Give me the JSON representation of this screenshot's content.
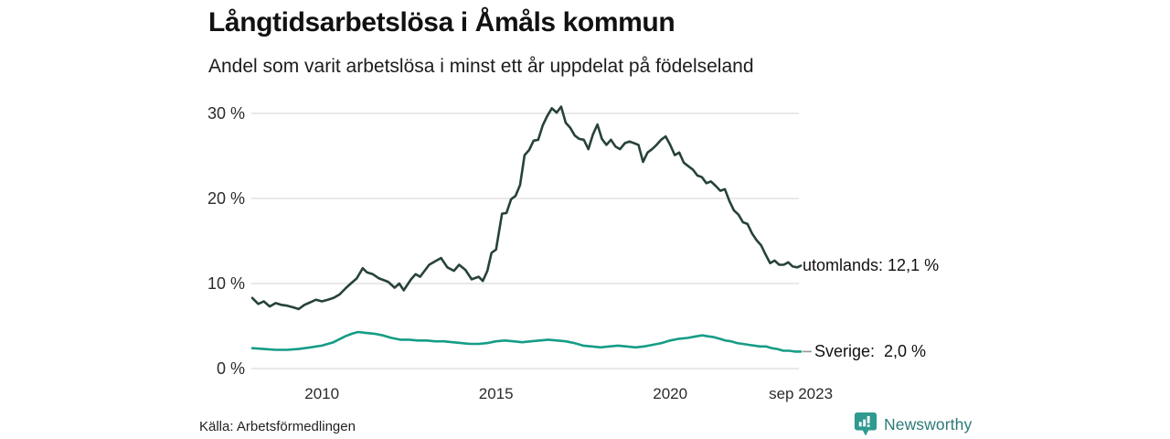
{
  "header": {
    "title": "Långtidsarbetslösa i Åmåls kommun",
    "subtitle": "Andel som varit arbetslösa i minst ett år uppdelat på födelseland"
  },
  "footer": {
    "source": "Källa: Arbetsförmedlingen",
    "brand": "Newsworthy"
  },
  "colors": {
    "series_utomlands": "#27423a",
    "series_sverige": "#169c87",
    "gridline": "#e2e2e2",
    "leader_dash": "#999999",
    "brand_teal": "#2f9a8f",
    "brand_text": "#2c7a77"
  },
  "chart_data": {
    "type": "line",
    "title": "Långtidsarbetslösa i Åmåls kommun",
    "subtitle": "Andel som varit arbetslösa i minst ett år uppdelat på födelseland",
    "grid": true,
    "legend_position": "end-of-line-labels",
    "x_axis": {
      "range": [
        2008.0,
        2023.75
      ],
      "ticks": [
        {
          "x": 2010,
          "label": "2010"
        },
        {
          "x": 2015,
          "label": "2015"
        },
        {
          "x": 2020,
          "label": "2020"
        },
        {
          "x": 2023.75,
          "label": "sep 2023"
        }
      ]
    },
    "y_axis": {
      "range": [
        0,
        31
      ],
      "unit": "%",
      "ticks": [
        {
          "v": 30,
          "label": "30 %"
        },
        {
          "v": 20,
          "label": "20 %"
        },
        {
          "v": 10,
          "label": "10 %"
        },
        {
          "v": 0,
          "label": "0 %"
        }
      ]
    },
    "series": [
      {
        "name": "utomlands",
        "end_label": "utomlands: 12,1 %",
        "end_value": 12.1,
        "color": "#27423a",
        "leader_dash": false,
        "points": [
          [
            2008.0,
            8.3
          ],
          [
            2008.17,
            7.6
          ],
          [
            2008.33,
            7.9
          ],
          [
            2008.5,
            7.3
          ],
          [
            2008.67,
            7.7
          ],
          [
            2008.83,
            7.5
          ],
          [
            2009.0,
            7.4
          ],
          [
            2009.17,
            7.2
          ],
          [
            2009.33,
            7.0
          ],
          [
            2009.5,
            7.5
          ],
          [
            2009.67,
            7.8
          ],
          [
            2009.83,
            8.1
          ],
          [
            2010.0,
            7.9
          ],
          [
            2010.17,
            8.1
          ],
          [
            2010.33,
            8.3
          ],
          [
            2010.5,
            8.7
          ],
          [
            2010.67,
            9.4
          ],
          [
            2010.83,
            10.0
          ],
          [
            2011.0,
            10.6
          ],
          [
            2011.17,
            11.8
          ],
          [
            2011.3,
            11.3
          ],
          [
            2011.46,
            11.1
          ],
          [
            2011.64,
            10.6
          ],
          [
            2011.9,
            10.2
          ],
          [
            2012.09,
            9.5
          ],
          [
            2012.22,
            10.0
          ],
          [
            2012.35,
            9.2
          ],
          [
            2012.56,
            10.5
          ],
          [
            2012.69,
            11.1
          ],
          [
            2012.82,
            10.8
          ],
          [
            2013.08,
            12.2
          ],
          [
            2013.25,
            12.6
          ],
          [
            2013.42,
            13.0
          ],
          [
            2013.6,
            11.9
          ],
          [
            2013.79,
            11.5
          ],
          [
            2013.94,
            12.2
          ],
          [
            2014.12,
            11.6
          ],
          [
            2014.3,
            10.5
          ],
          [
            2014.5,
            10.8
          ],
          [
            2014.62,
            10.3
          ],
          [
            2014.75,
            11.5
          ],
          [
            2014.87,
            13.6
          ],
          [
            2015.0,
            14.0
          ],
          [
            2015.17,
            18.2
          ],
          [
            2015.3,
            18.3
          ],
          [
            2015.43,
            19.9
          ],
          [
            2015.56,
            20.3
          ],
          [
            2015.69,
            21.6
          ],
          [
            2015.82,
            25.1
          ],
          [
            2015.95,
            25.7
          ],
          [
            2016.08,
            26.8
          ],
          [
            2016.21,
            26.9
          ],
          [
            2016.34,
            28.6
          ],
          [
            2016.47,
            29.7
          ],
          [
            2016.6,
            30.6
          ],
          [
            2016.74,
            30.1
          ],
          [
            2016.87,
            30.8
          ],
          [
            2017.0,
            28.9
          ],
          [
            2017.13,
            28.3
          ],
          [
            2017.26,
            27.4
          ],
          [
            2017.39,
            27.0
          ],
          [
            2017.52,
            26.9
          ],
          [
            2017.65,
            25.8
          ],
          [
            2017.78,
            27.5
          ],
          [
            2017.91,
            28.7
          ],
          [
            2018.04,
            27.0
          ],
          [
            2018.17,
            26.3
          ],
          [
            2018.3,
            26.9
          ],
          [
            2018.43,
            26.1
          ],
          [
            2018.56,
            25.8
          ],
          [
            2018.7,
            26.5
          ],
          [
            2018.83,
            26.7
          ],
          [
            2018.96,
            26.5
          ],
          [
            2019.09,
            26.3
          ],
          [
            2019.22,
            24.3
          ],
          [
            2019.35,
            25.4
          ],
          [
            2019.48,
            25.8
          ],
          [
            2019.61,
            26.3
          ],
          [
            2019.74,
            26.9
          ],
          [
            2019.87,
            27.3
          ],
          [
            2020.0,
            26.3
          ],
          [
            2020.13,
            25.1
          ],
          [
            2020.26,
            25.4
          ],
          [
            2020.39,
            24.2
          ],
          [
            2020.52,
            23.8
          ],
          [
            2020.65,
            23.4
          ],
          [
            2020.78,
            22.7
          ],
          [
            2020.91,
            22.5
          ],
          [
            2021.04,
            21.8
          ],
          [
            2021.17,
            22.0
          ],
          [
            2021.3,
            21.5
          ],
          [
            2021.44,
            20.9
          ],
          [
            2021.57,
            21.1
          ],
          [
            2021.7,
            19.7
          ],
          [
            2021.83,
            18.6
          ],
          [
            2021.96,
            18.1
          ],
          [
            2022.09,
            17.2
          ],
          [
            2022.22,
            17.0
          ],
          [
            2022.35,
            15.9
          ],
          [
            2022.48,
            15.1
          ],
          [
            2022.61,
            14.5
          ],
          [
            2022.74,
            13.4
          ],
          [
            2022.87,
            12.4
          ],
          [
            2023.0,
            12.7
          ],
          [
            2023.13,
            12.2
          ],
          [
            2023.26,
            12.2
          ],
          [
            2023.39,
            12.5
          ],
          [
            2023.52,
            12.0
          ],
          [
            2023.65,
            11.9
          ],
          [
            2023.75,
            12.1
          ]
        ]
      },
      {
        "name": "Sverige",
        "end_label": "Sverige:  2,0 %",
        "end_value": 2.0,
        "color": "#169c87",
        "leader_dash": true,
        "points": [
          [
            2008.0,
            2.4
          ],
          [
            2008.33,
            2.3
          ],
          [
            2008.67,
            2.2
          ],
          [
            2009.0,
            2.2
          ],
          [
            2009.33,
            2.3
          ],
          [
            2009.67,
            2.5
          ],
          [
            2010.0,
            2.7
          ],
          [
            2010.33,
            3.1
          ],
          [
            2010.67,
            3.8
          ],
          [
            2010.86,
            4.1
          ],
          [
            2011.04,
            4.3
          ],
          [
            2011.25,
            4.2
          ],
          [
            2011.5,
            4.1
          ],
          [
            2011.75,
            3.9
          ],
          [
            2012.0,
            3.6
          ],
          [
            2012.25,
            3.4
          ],
          [
            2012.5,
            3.4
          ],
          [
            2012.75,
            3.3
          ],
          [
            2013.0,
            3.3
          ],
          [
            2013.25,
            3.2
          ],
          [
            2013.5,
            3.2
          ],
          [
            2013.75,
            3.1
          ],
          [
            2014.0,
            3.0
          ],
          [
            2014.25,
            2.9
          ],
          [
            2014.5,
            2.9
          ],
          [
            2014.75,
            3.0
          ],
          [
            2015.0,
            3.2
          ],
          [
            2015.25,
            3.3
          ],
          [
            2015.5,
            3.2
          ],
          [
            2015.75,
            3.1
          ],
          [
            2016.0,
            3.2
          ],
          [
            2016.25,
            3.3
          ],
          [
            2016.5,
            3.4
          ],
          [
            2016.75,
            3.3
          ],
          [
            2017.0,
            3.2
          ],
          [
            2017.25,
            3.0
          ],
          [
            2017.5,
            2.7
          ],
          [
            2017.75,
            2.6
          ],
          [
            2018.0,
            2.5
          ],
          [
            2018.25,
            2.6
          ],
          [
            2018.5,
            2.7
          ],
          [
            2018.75,
            2.6
          ],
          [
            2019.0,
            2.5
          ],
          [
            2019.25,
            2.6
          ],
          [
            2019.5,
            2.8
          ],
          [
            2019.75,
            3.0
          ],
          [
            2020.0,
            3.3
          ],
          [
            2020.25,
            3.5
          ],
          [
            2020.5,
            3.6
          ],
          [
            2020.75,
            3.8
          ],
          [
            2020.92,
            3.9
          ],
          [
            2021.08,
            3.8
          ],
          [
            2021.25,
            3.7
          ],
          [
            2021.42,
            3.5
          ],
          [
            2021.58,
            3.3
          ],
          [
            2021.75,
            3.2
          ],
          [
            2021.92,
            3.0
          ],
          [
            2022.08,
            2.9
          ],
          [
            2022.25,
            2.8
          ],
          [
            2022.42,
            2.7
          ],
          [
            2022.58,
            2.6
          ],
          [
            2022.75,
            2.6
          ],
          [
            2022.92,
            2.4
          ],
          [
            2023.08,
            2.3
          ],
          [
            2023.25,
            2.1
          ],
          [
            2023.42,
            2.1
          ],
          [
            2023.58,
            2.0
          ],
          [
            2023.75,
            2.0
          ]
        ]
      }
    ]
  }
}
